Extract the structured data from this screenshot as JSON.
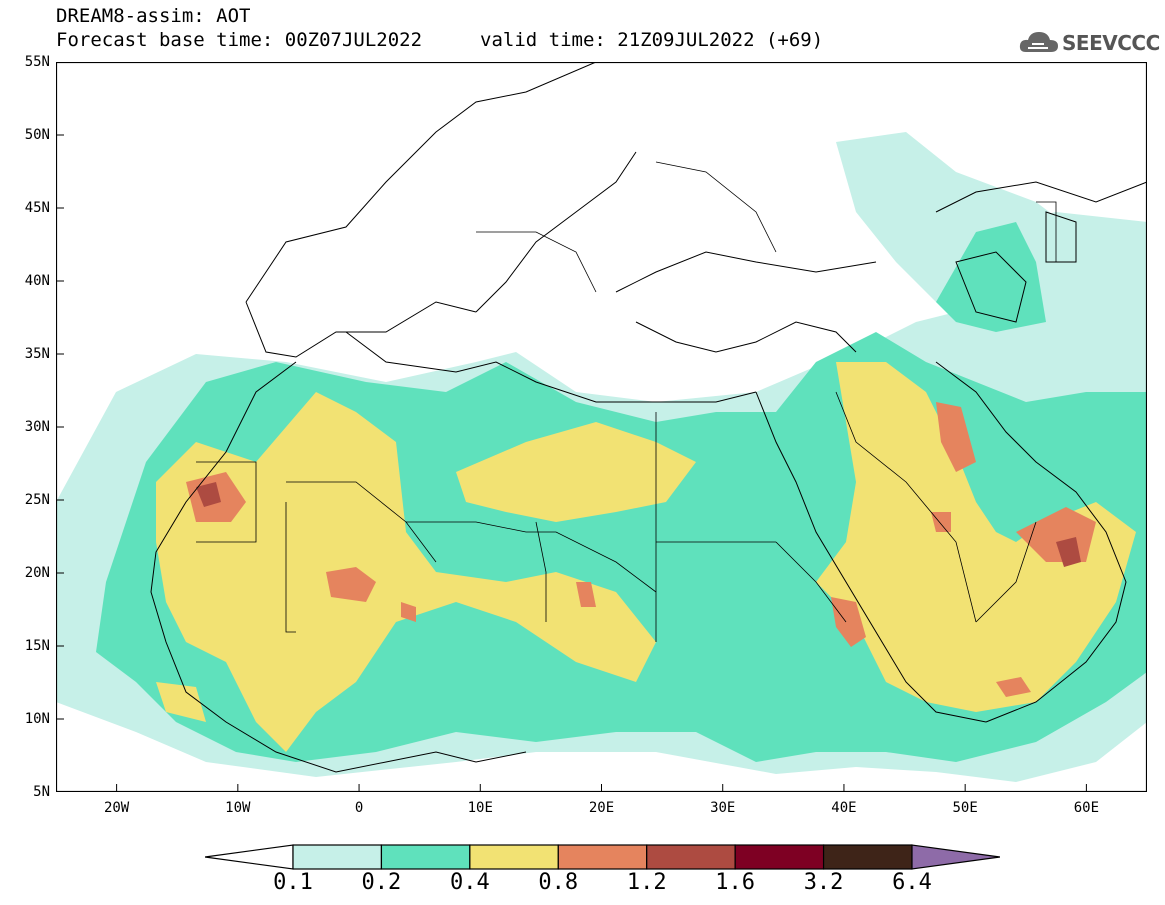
{
  "header": {
    "line1": "DREAM8-assim: AOT",
    "line2": "Forecast base time: 00Z07JUL2022",
    "valid": "valid time: 21Z09JUL2022 (+69)",
    "logo": "SEEVCCC",
    "logo_icon": "cloud-icon"
  },
  "map": {
    "field": "AOT",
    "lon_range": [
      -25,
      65
    ],
    "lat_range": [
      5,
      55
    ],
    "lat_labels": [
      "55N",
      "50N",
      "45N",
      "40N",
      "35N",
      "30N",
      "25N",
      "20N",
      "15N",
      "10N",
      "5N"
    ],
    "lon_labels": [
      "20W",
      "10W",
      "0",
      "10E",
      "20E",
      "30E",
      "40E",
      "50E",
      "60E"
    ]
  },
  "colorbar": {
    "levels": [
      "0.1",
      "0.2",
      "0.4",
      "0.8",
      "1.2",
      "1.6",
      "3.2",
      "6.4"
    ],
    "colors": [
      "#ffffff",
      "#c6f0e8",
      "#5fe1bc",
      "#f2e273",
      "#e5845e",
      "#ad4b41",
      "#7e0023",
      "#3e2418",
      "#8e6ba8"
    ]
  }
}
